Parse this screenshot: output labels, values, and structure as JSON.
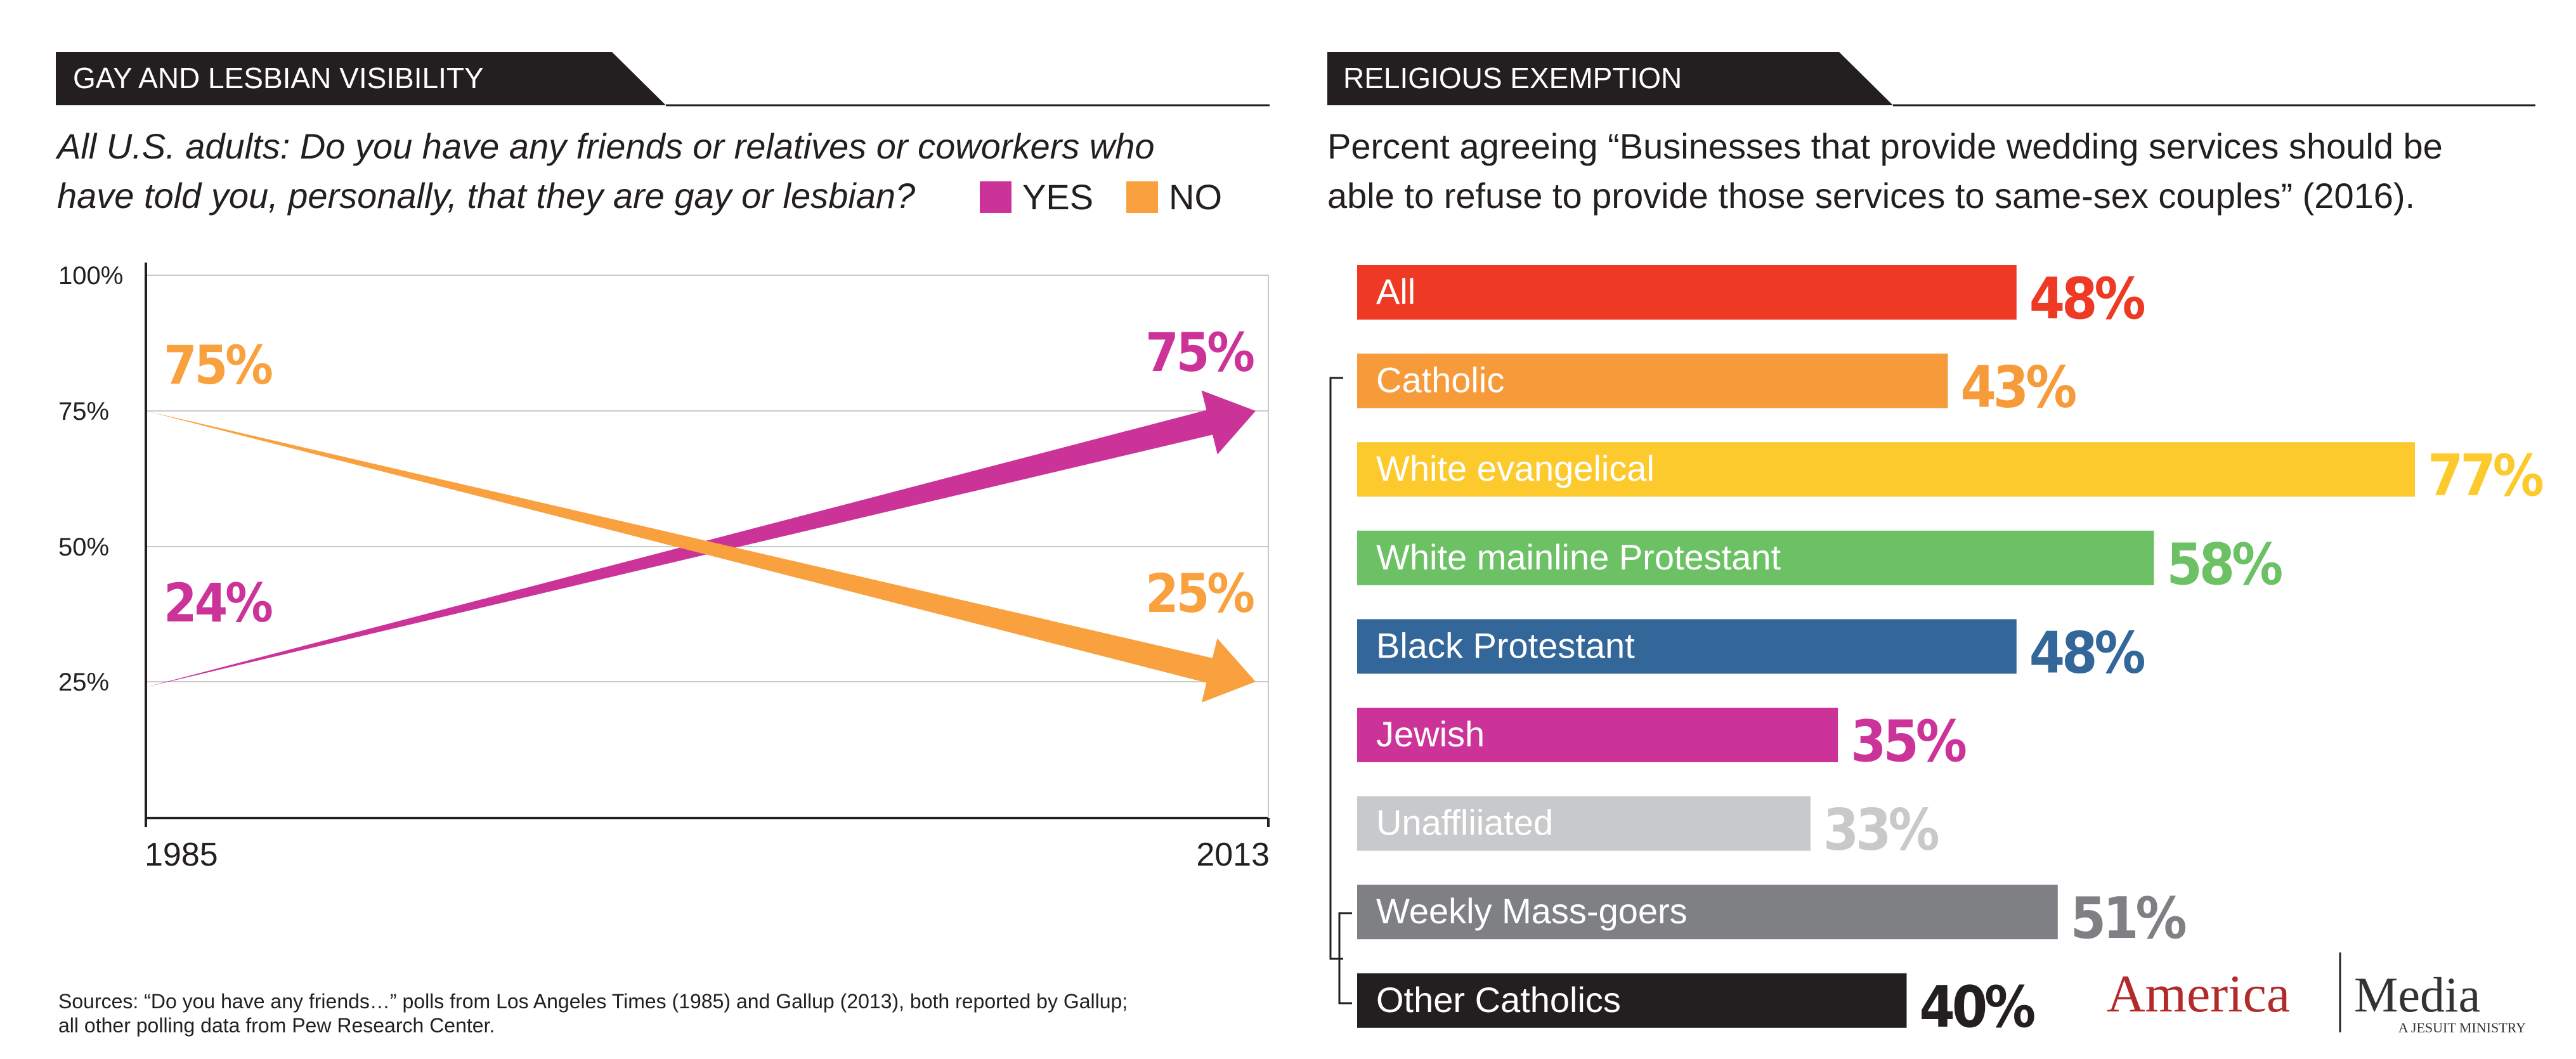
{
  "left": {
    "banner": "GAY AND LESBIAN VISIBILITY",
    "subtitle_line1": "All U.S. adults: Do you have any friends or relatives or coworkers who",
    "subtitle_line2": "have told you, personally, that they are gay or lesbian?",
    "legend": [
      {
        "label": "YES",
        "color": "#cc3399"
      },
      {
        "label": "NO",
        "color": "#f9a03f"
      }
    ],
    "sources_line1": "Sources: “Do you have any friends…” polls from Los Angeles Times (1985) and Gallup (2013), both reported by Gallup;",
    "sources_line2": "all other polling data from Pew Research Center."
  },
  "right": {
    "banner": "RELIGIOUS EXEMPTION",
    "subtitle_line1": "Percent agreeing “Businesses that provide wedding services should be",
    "subtitle_line2": "able to refuse to provide those services to same-sex couples” (2016)."
  },
  "brand": {
    "name1": "America",
    "name2": "Media",
    "tagline": "A JESUIT MINISTRY",
    "color1": "#b22a2a",
    "color2": "#333333"
  },
  "chart_data": [
    {
      "type": "line",
      "x": [
        "1985",
        "2013"
      ],
      "ylim": [
        0,
        100
      ],
      "yticks": [
        "100%",
        "75%",
        "50%",
        "25%"
      ],
      "ytick_values": [
        100,
        75,
        50,
        25
      ],
      "series": [
        {
          "name": "YES",
          "values": [
            24,
            75
          ],
          "labels": [
            "24%",
            "75%"
          ],
          "color": "#cc3399"
        },
        {
          "name": "NO",
          "values": [
            75,
            25
          ],
          "labels": [
            "75%",
            "25%"
          ],
          "color": "#f9a03f"
        }
      ]
    },
    {
      "type": "bar",
      "categories": [
        "All",
        "Catholic",
        "White evangelical",
        "White mainline Protestant",
        "Black Protestant",
        "Jewish",
        "Unaffliiated",
        "Weekly Mass-goers",
        "Other Catholics"
      ],
      "values": [
        48,
        43,
        77,
        58,
        48,
        35,
        33,
        51,
        40
      ],
      "labels": [
        "48%",
        "43%",
        "77%",
        "58%",
        "48%",
        "35%",
        "33%",
        "51%",
        "40%"
      ],
      "colors": [
        "#ee3a24",
        "#f79a3a",
        "#fdca2e",
        "#6cc164",
        "#336699",
        "#cc3399",
        "#c8c9cb",
        "#7f8083",
        "#231f20"
      ],
      "xlim": [
        0,
        77
      ]
    }
  ]
}
